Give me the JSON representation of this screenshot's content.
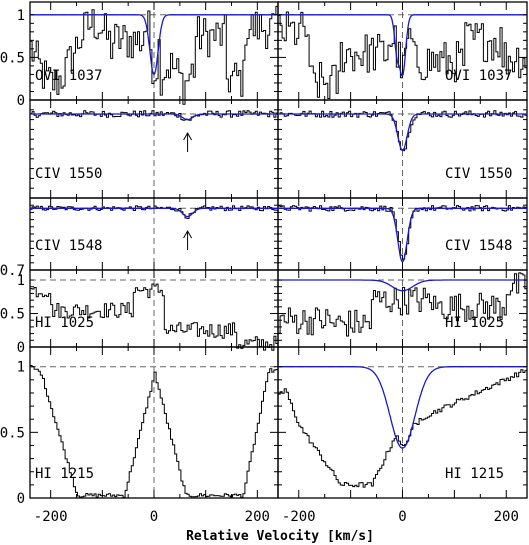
{
  "chart_data": {
    "type": "line",
    "xlabel": "Relative Velocity [km/s]",
    "xlim": [
      -240,
      240
    ],
    "xticks": [
      "-200",
      "0",
      "200",
      "-200",
      "0",
      "200"
    ],
    "colors": {
      "data": "#000000",
      "model": "#1a1acc",
      "guide": "#666666"
    },
    "columns": [
      {
        "panels": [
          {
            "label": "OVI  1037",
            "yticks": [
              "0",
              "0.5",
              "1"
            ],
            "ylim": [
              0,
              1.15
            ],
            "continuum": 1,
            "model": [
              {
                "v": 0,
                "depth": 0.7,
                "width": 8
              }
            ],
            "noise": 0.25,
            "envelope": "ovi_l"
          },
          {
            "label": "CIV  1550",
            "yticks": [],
            "ylim": [
              0.7,
              1.05
            ],
            "continuum": 1,
            "model": [
              {
                "v": 65,
                "depth": 0.02,
                "width": 10
              }
            ],
            "noise": 0.012,
            "arrow_v": 65
          },
          {
            "label": "CIV  1548",
            "yticks": [
              "0.7"
            ],
            "ylim": [
              0.7,
              1.05
            ],
            "continuum": 1,
            "model": [
              {
                "v": 65,
                "depth": 0.04,
                "width": 10
              }
            ],
            "noise": 0.012,
            "arrow_v": 65
          },
          {
            "label": "HI  1025",
            "yticks": [
              "0",
              "0.5",
              "1"
            ],
            "ylim": [
              0,
              1.15
            ],
            "continuum": null,
            "model": [],
            "noise": 0.12,
            "envelope": "hi1025_l"
          },
          {
            "label": "HI  1215",
            "yticks": [
              "0",
              "0.5",
              "1"
            ],
            "ylim": [
              0,
              1.15
            ],
            "continuum": null,
            "model": [],
            "noise": 0.015,
            "envelope": "hi1215_l"
          }
        ]
      },
      {
        "panels": [
          {
            "label": "OVI  1037",
            "yticks": [],
            "ylim": [
              0,
              1.15
            ],
            "continuum": 1,
            "model": [
              {
                "v": -10,
                "depth": 0.45,
                "width": 5
              },
              {
                "v": 0,
                "depth": 0.7,
                "width": 6
              }
            ],
            "noise": 0.25,
            "envelope": "ovi_r"
          },
          {
            "label": "CIV  1550",
            "yticks": [],
            "ylim": [
              0.7,
              1.05
            ],
            "continuum": 1,
            "model": [
              {
                "v": 0,
                "depth": 0.13,
                "width": 9
              }
            ],
            "noise": 0.012
          },
          {
            "label": "CIV  1548",
            "yticks": [],
            "ylim": [
              0.7,
              1.05
            ],
            "continuum": 1,
            "model": [
              {
                "v": 0,
                "depth": 0.26,
                "width": 9
              }
            ],
            "noise": 0.014
          },
          {
            "label": "HI  1025",
            "yticks": [],
            "ylim": [
              0,
              1.15
            ],
            "continuum": 1,
            "model": [
              {
                "v": 0,
                "depth": 0.16,
                "width": 20
              }
            ],
            "noise": 0.22,
            "envelope": "hi1025_r"
          },
          {
            "label": "HI  1215",
            "yticks": [],
            "ylim": [
              0,
              1.15
            ],
            "continuum": 1,
            "model": [
              {
                "v": 0,
                "depth": 0.62,
                "width": 24
              }
            ],
            "noise": 0.02,
            "envelope": "hi1215_r"
          }
        ]
      }
    ]
  }
}
